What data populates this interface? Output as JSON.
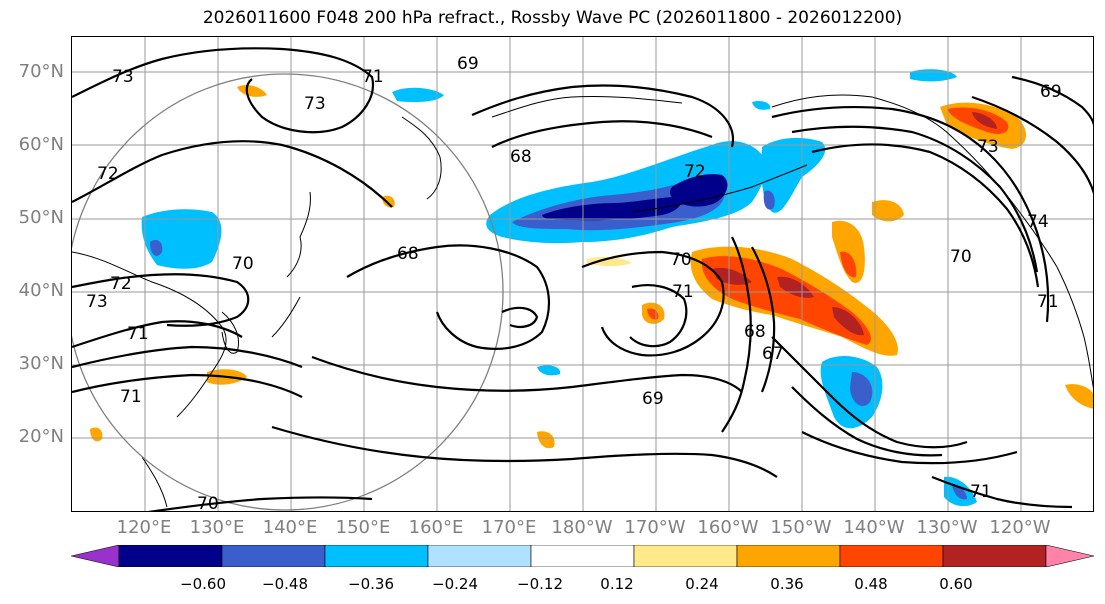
{
  "title": "2026011600 F048 200 hPa refract., Rossby Wave PC (2026011800 - 2026012200)",
  "map": {
    "lat_labels": [
      "70°N",
      "60°N",
      "50°N",
      "40°N",
      "30°N",
      "20°N"
    ],
    "lon_labels": [
      "120°E",
      "130°E",
      "140°E",
      "150°E",
      "160°E",
      "170°E",
      "180°W",
      "170°W",
      "160°W",
      "150°W",
      "140°W",
      "130°W",
      "120°W"
    ],
    "contour_labels": [
      "73",
      "73",
      "71",
      "69",
      "72",
      "68",
      "70",
      "73",
      "72",
      "71",
      "71",
      "70",
      "68",
      "70",
      "71",
      "68",
      "67",
      "69",
      "72",
      "74",
      "71",
      "70",
      "73",
      "71",
      "69"
    ]
  },
  "colorbar": {
    "ticks": [
      "−0.60",
      "−0.48",
      "−0.36",
      "−0.24",
      "−0.12",
      "0.12",
      "0.24",
      "0.36",
      "0.48",
      "0.60"
    ],
    "colors": [
      "#9932cc",
      "#00008b",
      "#3a5fcd",
      "#00bfff",
      "#b0e2ff",
      "#ffffff",
      "#ffe98a",
      "#ffa500",
      "#ff4500",
      "#b22222",
      "#ff83a8"
    ]
  }
}
